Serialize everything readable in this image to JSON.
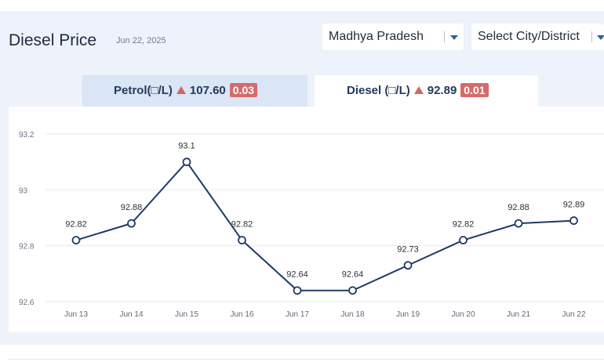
{
  "header": {
    "title": "Diesel Price",
    "date": "Jun 22, 2025"
  },
  "filters": {
    "state": "Madhya Pradesh",
    "city": "Select City/District"
  },
  "tabs": [
    {
      "label": "Petrol(□/L)",
      "price": "107.60",
      "change": "0.03",
      "active": false
    },
    {
      "label": "Diesel (□/L)",
      "price": "92.89",
      "change": "0.01",
      "active": true
    }
  ],
  "colors": {
    "line": "#1e3a66",
    "up": "#d46666",
    "grid": "#e6e9ef"
  },
  "chart_data": {
    "type": "line",
    "categories": [
      "Jun 13",
      "Jun 14",
      "Jun 15",
      "Jun 16",
      "Jun 17",
      "Jun 18",
      "Jun 19",
      "Jun 20",
      "Jun 21",
      "Jun 22"
    ],
    "values": [
      92.82,
      92.88,
      93.1,
      92.82,
      92.64,
      92.64,
      92.73,
      92.82,
      92.88,
      92.89
    ],
    "data_labels": [
      "92.82",
      "92.88",
      "93.1",
      "92.82",
      "92.64",
      "92.64",
      "92.73",
      "92.82",
      "92.88",
      "92.89"
    ],
    "yticks": [
      92.6,
      92.8,
      93,
      93.2
    ],
    "ytick_labels": [
      "92.6",
      "92.8",
      "93",
      "93.2"
    ],
    "ylim": [
      92.6,
      93.2
    ],
    "grid": true,
    "title": "",
    "xlabel": "",
    "ylabel": ""
  }
}
